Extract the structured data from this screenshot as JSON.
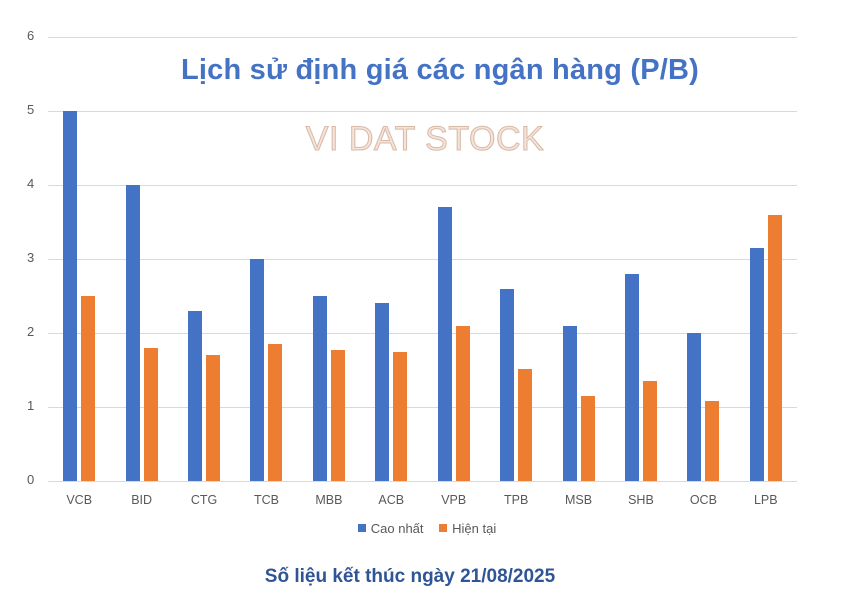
{
  "chart_data": {
    "type": "bar",
    "title": "Lịch sử định giá các ngân hàng (P/B)",
    "watermark": "VI DAT STOCK",
    "footnote": "Số liệu kết thúc ngày 21/08/2025",
    "xlabel": "",
    "ylabel": "",
    "ylim": [
      0,
      6
    ],
    "yticks": [
      "0",
      "1",
      "2",
      "3",
      "4",
      "5",
      "6"
    ],
    "grid": true,
    "legend_position": "bottom",
    "categories": [
      "VCB",
      "BID",
      "CTG",
      "TCB",
      "MBB",
      "ACB",
      "VPB",
      "TPB",
      "MSB",
      "SHB",
      "OCB",
      "LPB"
    ],
    "series": [
      {
        "name": "Cao nhất",
        "color": "#4472C4",
        "values": [
          5.0,
          4.0,
          2.3,
          3.0,
          2.5,
          2.4,
          3.7,
          2.6,
          2.1,
          2.8,
          2.0,
          3.15
        ]
      },
      {
        "name": "Hiện tại",
        "color": "#ED7D31",
        "values": [
          2.5,
          1.8,
          1.7,
          1.85,
          1.77,
          1.75,
          2.1,
          1.52,
          1.15,
          1.35,
          1.08,
          3.6
        ]
      }
    ]
  },
  "legend": {
    "items": [
      "Cao nhất",
      "Hiện tại"
    ]
  }
}
